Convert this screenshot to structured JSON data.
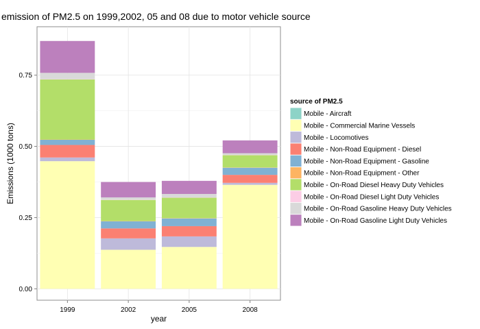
{
  "chart_data": {
    "type": "bar",
    "stacked": true,
    "title": "emission of PM2.5 on 1999,2002, 05 and 08 due to motor vehicle source",
    "xlabel": "year",
    "ylabel": "Emissions (1000 tons)",
    "categories": [
      "1999",
      "2002",
      "2005",
      "2008"
    ],
    "ylim": [
      -0.04,
      0.92
    ],
    "yticks": [
      0.0,
      0.25,
      0.5,
      0.75
    ],
    "ytick_labels": [
      "0.00",
      "0.25",
      "0.50",
      "0.75"
    ],
    "grid": true,
    "legend_title": "source of PM2.5",
    "legend_position": "right",
    "series": [
      {
        "name": "Mobile - Aircraft",
        "color": "#8DD3C7",
        "values": [
          0.0,
          0.0,
          0.0,
          0.0
        ]
      },
      {
        "name": "Mobile - Commercial Marine Vessels",
        "color": "#FFFFB3",
        "values": [
          0.448,
          0.137,
          0.147,
          0.365
        ]
      },
      {
        "name": "Mobile - Locomotives",
        "color": "#BEBADA",
        "values": [
          0.013,
          0.04,
          0.037,
          0.007
        ]
      },
      {
        "name": "Mobile - Non-Road Equipment - Diesel",
        "color": "#FB8072",
        "values": [
          0.044,
          0.035,
          0.036,
          0.028
        ]
      },
      {
        "name": "Mobile - Non-Road Equipment - Gasoline",
        "color": "#80B1D3",
        "values": [
          0.018,
          0.025,
          0.027,
          0.025
        ]
      },
      {
        "name": "Mobile - Non-Road Equipment - Other",
        "color": "#FDB462",
        "values": [
          0.001,
          0.001,
          0.001,
          0.001
        ]
      },
      {
        "name": "Mobile - On-Road Diesel Heavy Duty Vehicles",
        "color": "#B3DE69",
        "values": [
          0.211,
          0.074,
          0.072,
          0.043
        ]
      },
      {
        "name": "Mobile - On-Road Diesel Light Duty Vehicles",
        "color": "#FCCDE5",
        "values": [
          0.001,
          0.001,
          0.001,
          0.001
        ]
      },
      {
        "name": "Mobile - On-Road Gasoline Heavy Duty Vehicles",
        "color": "#D9D9D9",
        "values": [
          0.022,
          0.008,
          0.012,
          0.006
        ]
      },
      {
        "name": "Mobile - On-Road Gasoline Light Duty Vehicles",
        "color": "#BC80BD",
        "values": [
          0.112,
          0.054,
          0.046,
          0.045
        ]
      }
    ]
  }
}
